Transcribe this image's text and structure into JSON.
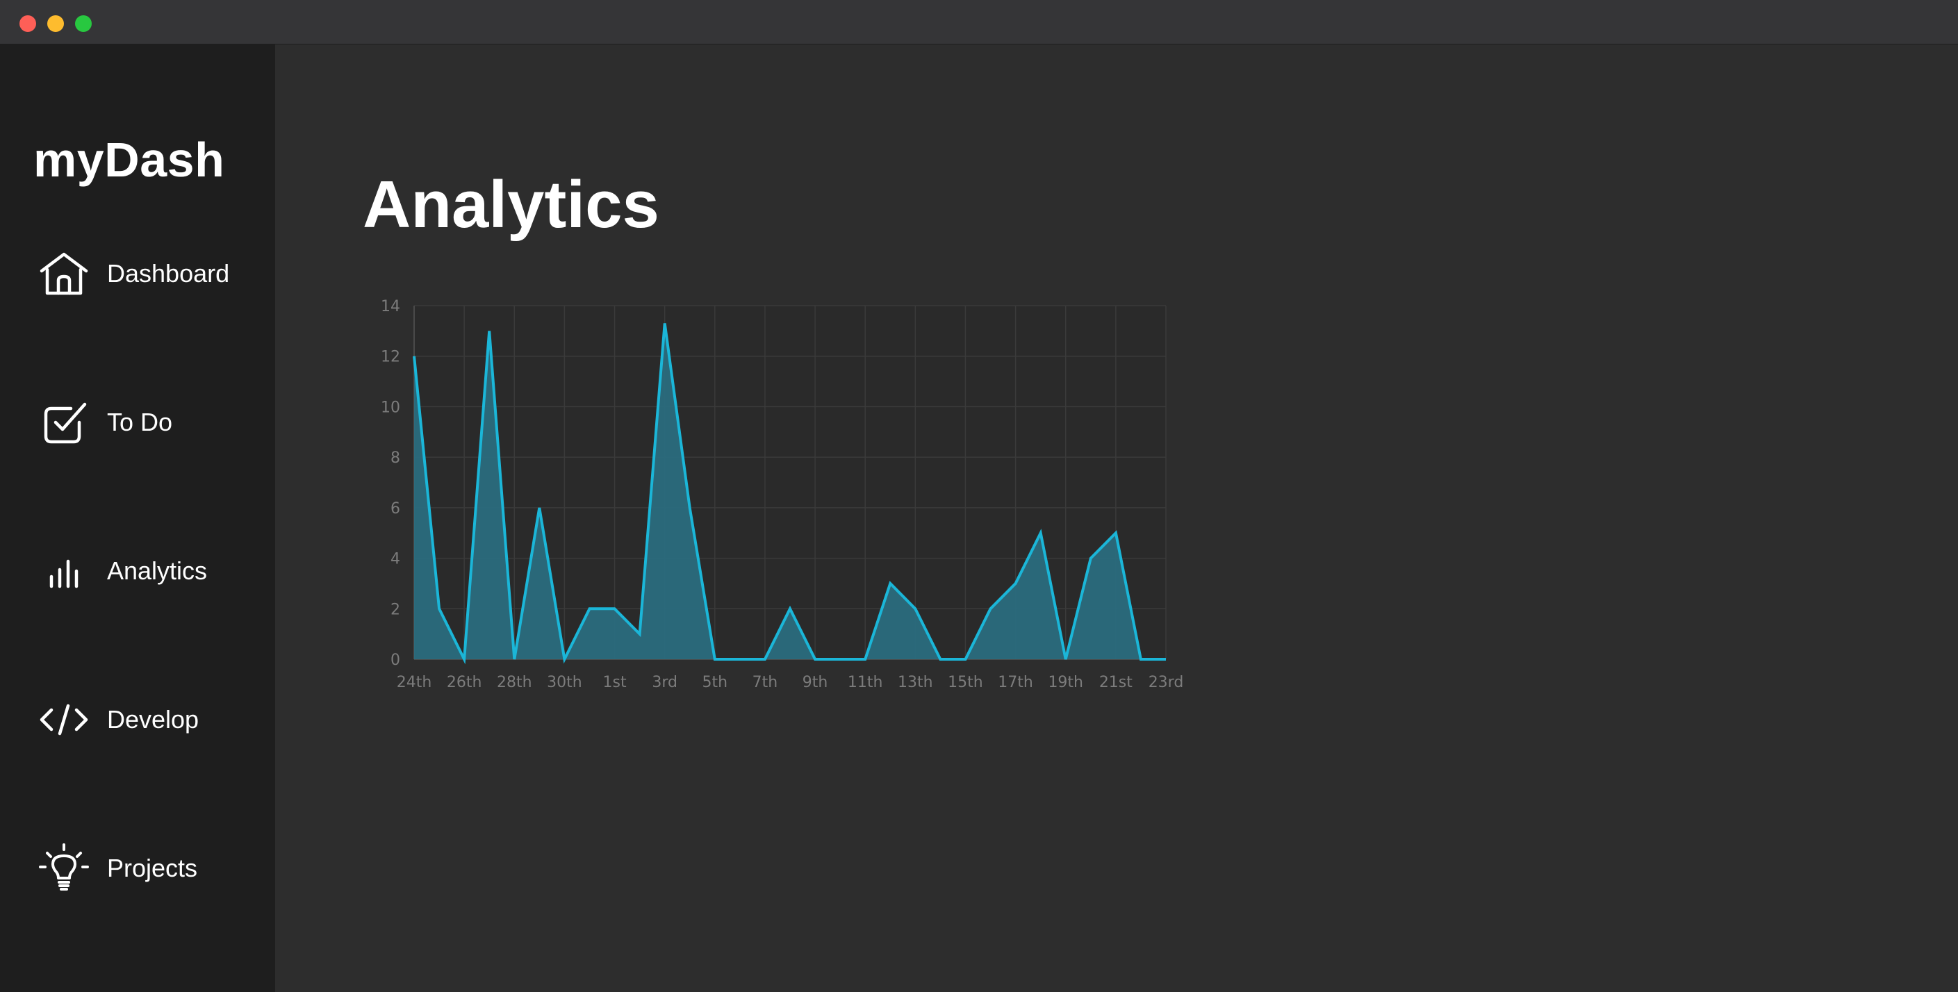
{
  "app": {
    "brand": "myDash"
  },
  "sidebar": {
    "items": [
      {
        "label": "Dashboard",
        "icon": "home-icon"
      },
      {
        "label": "To Do",
        "icon": "checkbox-icon"
      },
      {
        "label": "Analytics",
        "icon": "bar-chart-icon"
      },
      {
        "label": "Develop",
        "icon": "code-icon"
      },
      {
        "label": "Projects",
        "icon": "lightbulb-icon"
      }
    ]
  },
  "main": {
    "title": "Analytics"
  },
  "colors": {
    "accent": "#1bb6d8",
    "fill": "#2a6f82",
    "sidebar": "#1e1e1e",
    "background": "#2d2d2d"
  },
  "chart_data": {
    "type": "area",
    "x": [
      "24th",
      "25th",
      "26th",
      "27th",
      "28th",
      "29th",
      "30th",
      "31st",
      "1st",
      "2nd",
      "3rd",
      "4th",
      "5th",
      "6th",
      "7th",
      "8th",
      "9th",
      "10th",
      "11th",
      "12th",
      "13th",
      "14th",
      "15th",
      "16th",
      "17th",
      "18th",
      "19th",
      "20th",
      "21st",
      "22nd",
      "23rd"
    ],
    "tick_labels": [
      "24th",
      "26th",
      "28th",
      "30th",
      "1st",
      "3rd",
      "5th",
      "7th",
      "9th",
      "11th",
      "13th",
      "15th",
      "17th",
      "19th",
      "21st",
      "23rd"
    ],
    "values": [
      12,
      2,
      0,
      13,
      0,
      6,
      0,
      2,
      2,
      1,
      13.3,
      6,
      0,
      0,
      0,
      2,
      0,
      0,
      0,
      3,
      2,
      0,
      0,
      2,
      3,
      5,
      0,
      4,
      5,
      0,
      0
    ],
    "ylim": [
      0,
      14
    ],
    "yticks": [
      0,
      2,
      4,
      6,
      8,
      10,
      12,
      14
    ],
    "grid": true,
    "legend": "none"
  }
}
